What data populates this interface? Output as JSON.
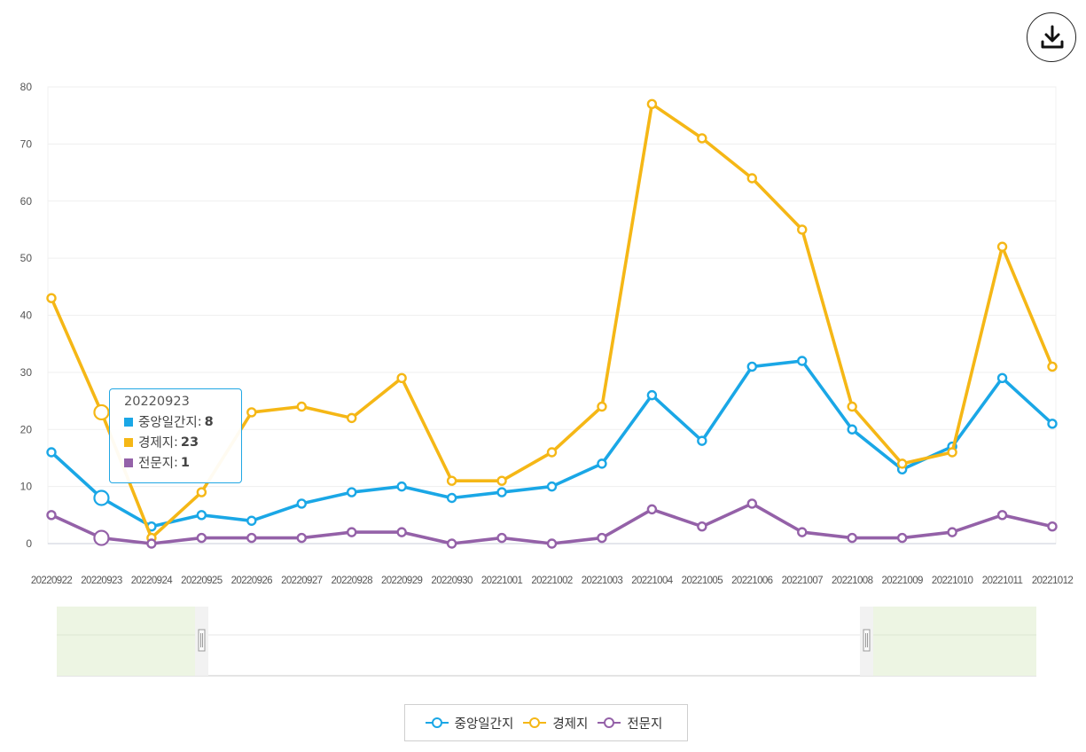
{
  "chart_data": {
    "type": "line",
    "categories": [
      "20220922",
      "20220923",
      "20220924",
      "20220925",
      "20220926",
      "20220927",
      "20220928",
      "20220929",
      "20220930",
      "20221001",
      "20221002",
      "20221003",
      "20221004",
      "20221005",
      "20221006",
      "20221007",
      "20221008",
      "20221009",
      "20221010",
      "20221011",
      "20221012"
    ],
    "series": [
      {
        "name": "중앙일간지",
        "color": "#1aa7e6",
        "values": [
          16,
          8,
          3,
          5,
          4,
          7,
          9,
          10,
          8,
          9,
          10,
          14,
          26,
          18,
          31,
          32,
          20,
          13,
          17,
          29,
          21
        ]
      },
      {
        "name": "경제지",
        "color": "#f5b716",
        "values": [
          43,
          23,
          1,
          9,
          23,
          24,
          22,
          29,
          11,
          11,
          16,
          24,
          77,
          71,
          64,
          55,
          24,
          14,
          16,
          52,
          31
        ]
      },
      {
        "name": "전문지",
        "color": "#9461a8",
        "values": [
          5,
          1,
          0,
          1,
          1,
          1,
          2,
          2,
          0,
          1,
          0,
          1,
          6,
          3,
          7,
          2,
          1,
          1,
          2,
          5,
          3
        ]
      }
    ],
    "yticks": [
      "0",
      "10",
      "20",
      "30",
      "40",
      "50",
      "60",
      "70",
      "80"
    ],
    "ylim": [
      0,
      80
    ],
    "grid": true,
    "legend": "bottom-center",
    "highlight_index": 1
  },
  "tooltip": {
    "title": "20220923",
    "rows": [
      {
        "label": "중앙일간지",
        "sep": " : ",
        "value": "8",
        "color": "#1aa7e6"
      },
      {
        "label": "경제지",
        "sep": " : ",
        "value": "23",
        "color": "#f5b716"
      },
      {
        "label": "전문지",
        "sep": " : ",
        "value": "1",
        "color": "#9461a8"
      }
    ]
  },
  "legend": {
    "items": [
      {
        "label": "중앙일간지",
        "color": "#1aa7e6"
      },
      {
        "label": "경제지",
        "color": "#f5b716"
      },
      {
        "label": "전문지",
        "color": "#9461a8"
      }
    ]
  },
  "toolbar": {
    "download_icon": "download-icon"
  }
}
